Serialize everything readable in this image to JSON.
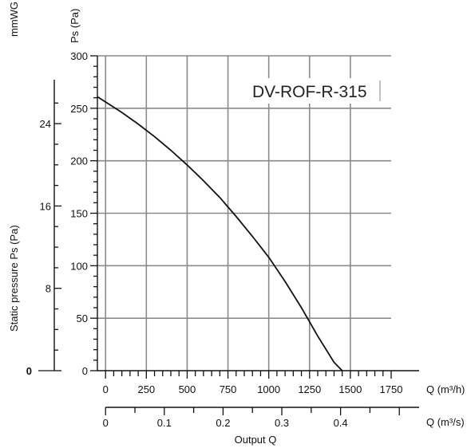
{
  "chart_data": {
    "type": "line",
    "title": "",
    "model_label": "DV-ROF-R-315",
    "ylabel": "Static pressure Ps (Pa)",
    "y_unit_pa": "Ps (Pa)",
    "y_unit_mmwg": "mmWG",
    "xlabel": "Output Q",
    "x_unit_m3h": "Q (m³/h)",
    "x_unit_m3s": "Q (m³/s)",
    "ylim": [
      0,
      300
    ],
    "xlim_m3h": [
      -50,
      1750
    ],
    "y_ticks_pa": [
      "0",
      "50",
      "100",
      "150",
      "200",
      "250",
      "300"
    ],
    "y_ticks_mmwg": [
      "0",
      "8",
      "16",
      "24"
    ],
    "x_ticks_m3h": [
      "0",
      "250",
      "500",
      "750",
      "1000",
      "1250",
      "1500",
      "1750"
    ],
    "x_ticks_m3s": [
      "0",
      "0.1",
      "0.2",
      "0.3",
      "0.4"
    ],
    "grid": true,
    "series": [
      {
        "x": [
          -50,
          0,
          100,
          200,
          300,
          400,
          500,
          600,
          700,
          800,
          900,
          1000,
          1100,
          1200,
          1300,
          1400,
          1450
        ],
        "y": [
          261,
          256,
          246,
          235,
          223,
          210,
          196,
          181,
          165,
          147,
          128,
          108,
          85,
          60,
          33,
          8,
          0
        ]
      }
    ]
  }
}
